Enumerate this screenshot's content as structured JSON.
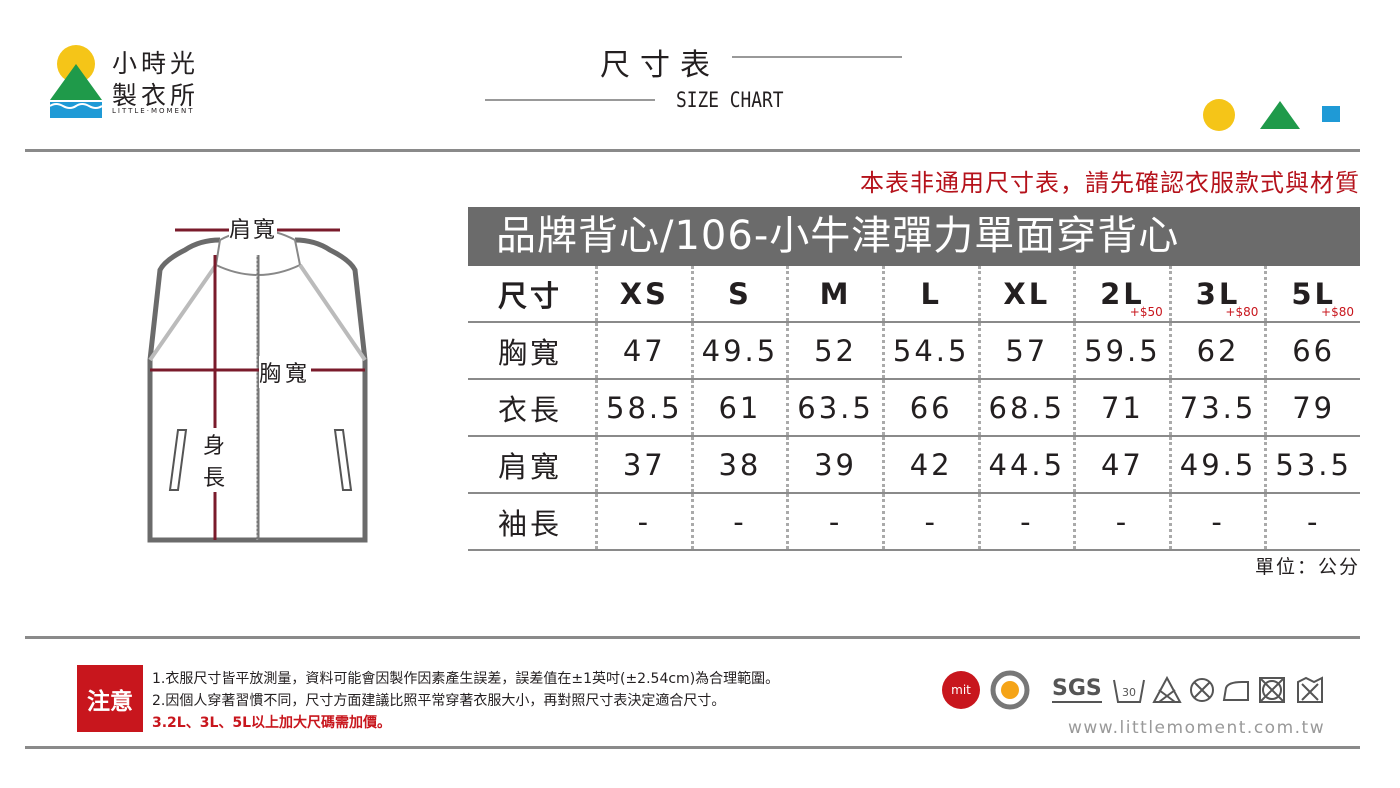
{
  "logo": {
    "line1": "小時光",
    "line2": "製衣所",
    "tagline": "LITTLE·MOMENT"
  },
  "header": {
    "title": "尺寸表",
    "subtitle": "SIZE CHART"
  },
  "notice": "本表非通用尺寸表，請先確認衣服款式與材質",
  "diagram": {
    "shoulder": "肩寬",
    "chest": "胸寬",
    "length_1": "身",
    "length_2": "長"
  },
  "table": {
    "title": "品牌背心/106-小牛津彈力單面穿背心",
    "size_label": "尺寸",
    "sizes": [
      {
        "label": "XS"
      },
      {
        "label": "S"
      },
      {
        "label": "M"
      },
      {
        "label": "L"
      },
      {
        "label": "XL"
      },
      {
        "label": "2L",
        "surcharge": "+$50"
      },
      {
        "label": "3L",
        "surcharge": "+$80"
      },
      {
        "label": "5L",
        "surcharge": "+$80"
      }
    ],
    "rows": [
      {
        "label": "胸寬",
        "values": [
          47,
          49.5,
          52,
          54.5,
          57,
          59.5,
          62,
          66
        ]
      },
      {
        "label": "衣長",
        "values": [
          58.5,
          61,
          63.5,
          66,
          68.5,
          71,
          73.5,
          79
        ]
      },
      {
        "label": "肩寬",
        "values": [
          37,
          38,
          39,
          42,
          44.5,
          47,
          49.5,
          53.5
        ]
      },
      {
        "label": "袖長",
        "values": [
          "-",
          "-",
          "-",
          "-",
          "-",
          "-",
          "-",
          "-"
        ]
      }
    ],
    "unit": "單位：公分"
  },
  "footer": {
    "notice_label": "注意",
    "notes": [
      "1.衣服尺寸皆平放測量，資料可能會因製作因素產生誤差，誤差值在±1英吋(±2.54cm)為合理範圍。",
      "2.因個人穿著習慣不同，尺寸方面建議比照平常穿著衣服大小，再對照尺寸表決定適合尺寸。",
      "3.2L、3L、5L以上加大尺碼需加價。"
    ],
    "badges": [
      "mit",
      "SGS"
    ],
    "website": "www.littlemoment.com.tw"
  }
}
